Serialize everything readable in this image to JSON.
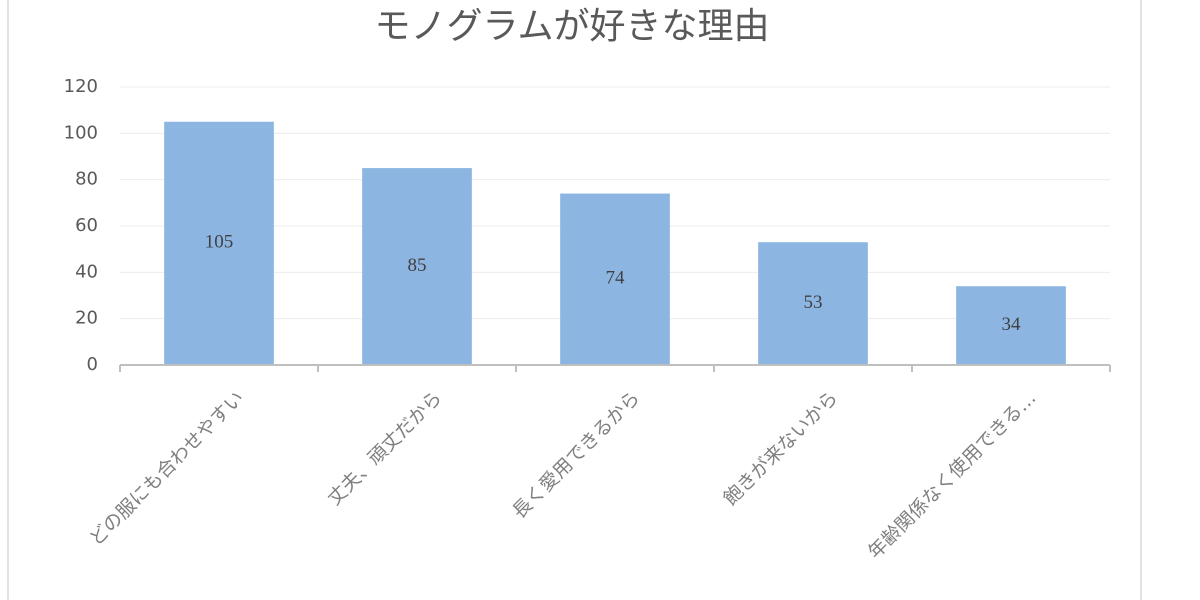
{
  "chart_data": {
    "type": "bar",
    "title": "モノグラムが好きな理由",
    "categories": [
      "どの服にも合わせやすい",
      "丈夫、頑丈だから",
      "長く愛用できるから",
      "飽きが来ないから",
      "年齢関係なく使用できる…"
    ],
    "values": [
      105,
      85,
      74,
      53,
      34
    ],
    "color": "#8cb6e1",
    "ylim": [
      0,
      120
    ],
    "yticks": [
      0,
      20,
      40,
      60,
      80,
      100,
      120
    ],
    "grid": true
  }
}
